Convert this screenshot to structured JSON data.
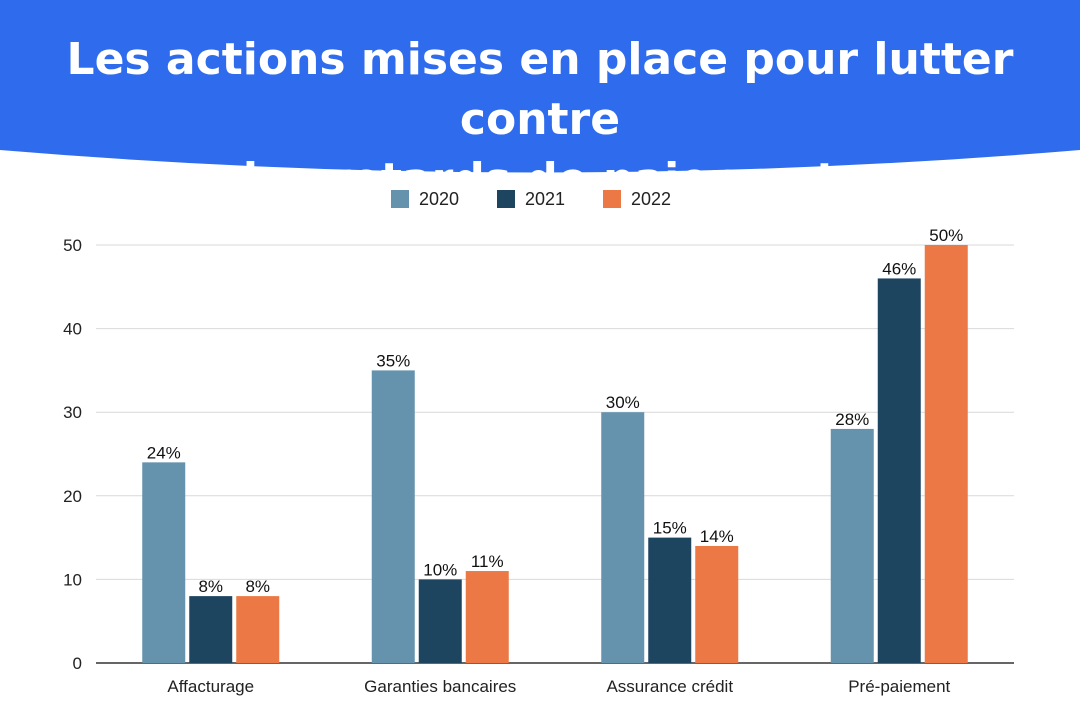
{
  "title_lines": [
    "Les actions mises en place pour lutter contre",
    "les retards de paiement"
  ],
  "colors": {
    "banner": "#2f6ced",
    "title_text": "#ffffff",
    "grid": "#d9d9d9",
    "axis": "#333333"
  },
  "chart_data": {
    "type": "bar",
    "title": "Les actions mises en place pour lutter contre les retards de paiement",
    "categories": [
      "Affacturage",
      "Garanties bancaires",
      "Assurance crédit",
      "Pré-paiement"
    ],
    "series": [
      {
        "name": "2020",
        "color": "#6592ac",
        "values": [
          24,
          35,
          30,
          28
        ],
        "labels": [
          "24%",
          "35%",
          "30%",
          "28%"
        ]
      },
      {
        "name": "2021",
        "color": "#1d4560",
        "values": [
          8,
          10,
          15,
          46
        ],
        "labels": [
          "8%",
          "10%",
          "15%",
          "46%"
        ]
      },
      {
        "name": "2022",
        "color": "#ec7945",
        "values": [
          8,
          11,
          14,
          50
        ],
        "labels": [
          "8%",
          "11%",
          "14%",
          "50%"
        ]
      }
    ],
    "yticks": [
      0,
      10,
      20,
      30,
      40,
      50
    ],
    "ylim": [
      0,
      50
    ],
    "grid": true,
    "legend_position": "top-center"
  }
}
